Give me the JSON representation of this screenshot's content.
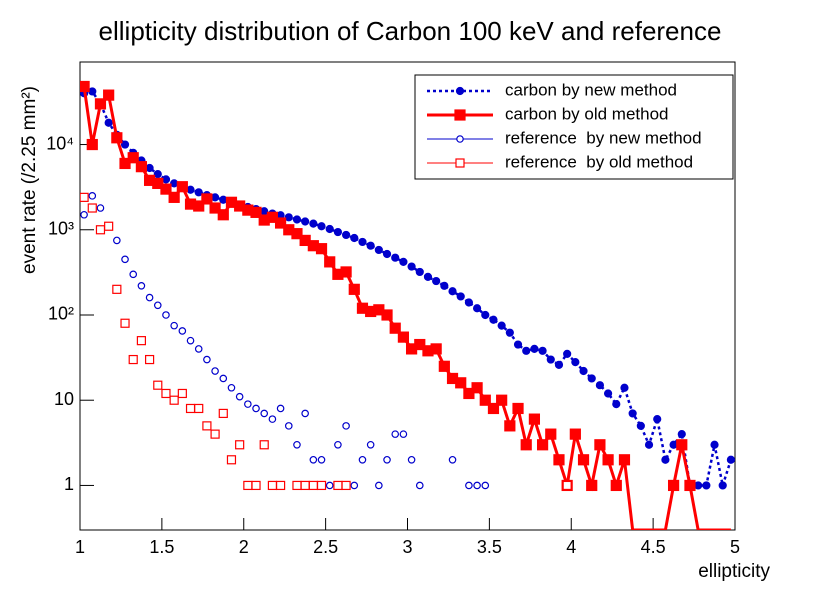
{
  "chart_data": {
    "type": "scatter",
    "title": "ellipticity distribution of Carbon 100 keV and reference",
    "x_label": "ellipticity",
    "y_label": "event rate (/2.25 mm²)",
    "log_y": true,
    "legend": "top-right",
    "xlim": [
      1,
      5
    ],
    "xticks": [
      1,
      1.5,
      2,
      2.5,
      3,
      3.5,
      4,
      4.5,
      5
    ],
    "ylim": [
      0.3,
      93000
    ],
    "yticks": [
      1,
      10,
      {
        "value": 100,
        "label": "10²"
      },
      {
        "value": 1000,
        "label": "10³"
      },
      {
        "value": 10000,
        "label": "10⁴"
      }
    ],
    "x": [
      1.025,
      1.075,
      1.125,
      1.175,
      1.225,
      1.275,
      1.325,
      1.375,
      1.425,
      1.475,
      1.525,
      1.575,
      1.625,
      1.675,
      1.725,
      1.775,
      1.825,
      1.875,
      1.925,
      1.975,
      2.025,
      2.075,
      2.125,
      2.175,
      2.225,
      2.275,
      2.325,
      2.375,
      2.425,
      2.475,
      2.525,
      2.575,
      2.625,
      2.675,
      2.725,
      2.775,
      2.825,
      2.875,
      2.925,
      2.975,
      3.025,
      3.075,
      3.125,
      3.175,
      3.225,
      3.275,
      3.325,
      3.375,
      3.425,
      3.475,
      3.525,
      3.575,
      3.625,
      3.675,
      3.725,
      3.775,
      3.825,
      3.875,
      3.925,
      3.975,
      4.025,
      4.075,
      4.125,
      4.175,
      4.225,
      4.275,
      4.325,
      4.375,
      4.425,
      4.475,
      4.525,
      4.575,
      4.625,
      4.675,
      4.725,
      4.775,
      4.825,
      4.875,
      4.925,
      4.975
    ],
    "series": [
      {
        "name": "carbon by new method",
        "color": "#0000cc",
        "line": "dotted",
        "marker": "circle",
        "filled": true,
        "values": [
          40000,
          42000,
          30000,
          18000,
          13000,
          10000,
          8000,
          6500,
          5300,
          4500,
          3900,
          3500,
          3200,
          2950,
          2750,
          2550,
          2400,
          2250,
          2100,
          1950,
          1850,
          1750,
          1650,
          1550,
          1480,
          1400,
          1320,
          1250,
          1180,
          1100,
          1020,
          940,
          870,
          800,
          720,
          650,
          580,
          520,
          470,
          420,
          370,
          320,
          280,
          250,
          220,
          190,
          165,
          140,
          120,
          100,
          88,
          75,
          62,
          45,
          38,
          40,
          38,
          30,
          26,
          35,
          28,
          22,
          18,
          15,
          12,
          9,
          14,
          7,
          5,
          3,
          6,
          2,
          3,
          4,
          1,
          1,
          1,
          3,
          1,
          2
        ]
      },
      {
        "name": "carbon by old method",
        "color": "#ff0000",
        "line": "solid",
        "marker": "square",
        "filled": true,
        "values": [
          48000,
          10000,
          30000,
          38000,
          12000,
          6000,
          7000,
          5500,
          3800,
          3500,
          3000,
          2400,
          3200,
          2000,
          1900,
          2300,
          1800,
          1500,
          2100,
          1900,
          1700,
          1600,
          1300,
          1400,
          1200,
          1000,
          900,
          750,
          650,
          600,
          420,
          300,
          320,
          200,
          120,
          110,
          115,
          100,
          70,
          55,
          40,
          45,
          38,
          40,
          25,
          18,
          16,
          12,
          14,
          10,
          8,
          10,
          5,
          8,
          3,
          6,
          3,
          4,
          2,
          1,
          4,
          2,
          1,
          3,
          2,
          1,
          2,
          0,
          0,
          0,
          0,
          0,
          1,
          3,
          1,
          0,
          0,
          0,
          0,
          0
        ]
      },
      {
        "name": "reference  by new method",
        "color": "#0000cc",
        "line": "none",
        "marker": "circle",
        "filled": false,
        "values": [
          1500,
          2500,
          1800,
          1100,
          750,
          450,
          300,
          220,
          160,
          130,
          100,
          75,
          65,
          50,
          40,
          30,
          22,
          18,
          14,
          11,
          9,
          8,
          7,
          6,
          8,
          5,
          3,
          7,
          2,
          2,
          1,
          3,
          5,
          1,
          2,
          3,
          1,
          2,
          4,
          4,
          2,
          1,
          0,
          0,
          0,
          2,
          0,
          1,
          1,
          1,
          0,
          0,
          0,
          0,
          0,
          0,
          0,
          0,
          0,
          1,
          0,
          0,
          0,
          0,
          0,
          0,
          0,
          0,
          0,
          0,
          0,
          0,
          0,
          0,
          0,
          0,
          0,
          0,
          0,
          0
        ]
      },
      {
        "name": "reference  by old method",
        "color": "#ff0000",
        "line": "none",
        "marker": "square",
        "filled": false,
        "values": [
          2400,
          1800,
          1000,
          1100,
          200,
          80,
          30,
          50,
          30,
          15,
          12,
          10,
          12,
          8,
          8,
          5,
          4,
          7,
          2,
          3,
          1,
          1,
          3,
          1,
          1,
          0,
          1,
          1,
          1,
          1,
          0,
          1,
          1,
          0,
          0,
          0,
          0,
          0,
          0,
          0,
          0,
          0,
          0,
          0,
          0,
          0,
          0,
          0,
          0,
          0,
          0,
          0,
          0,
          0,
          0,
          0,
          0,
          0,
          0,
          1,
          0,
          0,
          0,
          0,
          0,
          0,
          0,
          0,
          0,
          0,
          0,
          0,
          0,
          0,
          0,
          0,
          0,
          0,
          0,
          0
        ]
      }
    ]
  }
}
